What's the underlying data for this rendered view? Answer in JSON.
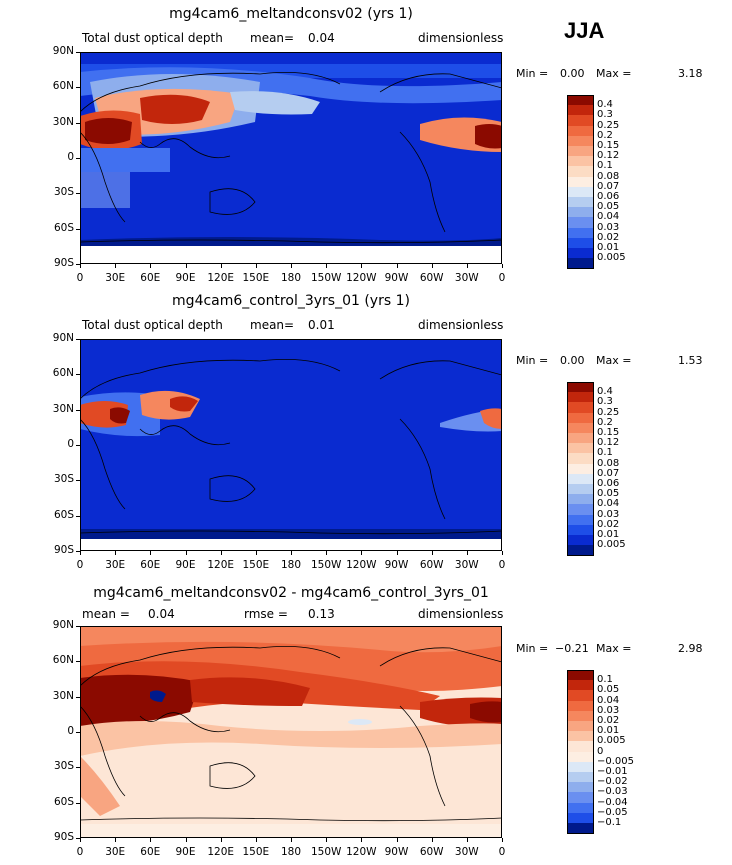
{
  "season": "JJA",
  "lat_ticks": [
    "90N",
    "60N",
    "30N",
    "0",
    "30S",
    "60S",
    "90S"
  ],
  "lon_ticks": [
    "0",
    "30E",
    "60E",
    "90E",
    "120E",
    "150E",
    "180",
    "150W",
    "120W",
    "90W",
    "60W",
    "30W",
    "0"
  ],
  "panels": [
    {
      "title": "mg4cam6_meltandconsv02 (yrs 1)",
      "left_label": "Total dust optical depth",
      "mid_label": "mean=",
      "mid_value": "0.04",
      "right_label": "dimensionless",
      "min_label": "Min =",
      "min_value": "0.00",
      "max_label": "Max =",
      "max_value": "3.18",
      "levels": [
        "0.4",
        "0.3",
        "0.25",
        "0.2",
        "0.15",
        "0.12",
        "0.1",
        "0.08",
        "0.07",
        "0.06",
        "0.05",
        "0.04",
        "0.03",
        "0.02",
        "0.01",
        "0.005"
      ],
      "colors": [
        "#8b0a00",
        "#c2260c",
        "#e14a24",
        "#ef6a40",
        "#f5875e",
        "#f8a581",
        "#fbc3a4",
        "#fcdcc4",
        "#fdeee2",
        "#dce8f6",
        "#b5cdf0",
        "#8eaeed",
        "#6a8ff0",
        "#4170f0",
        "#1e4ee8",
        "#0a2bd0",
        "#001a8c"
      ]
    },
    {
      "title": "mg4cam6_control_3yrs_01 (yrs 1)",
      "left_label": "Total dust optical depth",
      "mid_label": "mean=",
      "mid_value": "0.01",
      "right_label": "dimensionless",
      "min_label": "Min =",
      "min_value": "0.00",
      "max_label": "Max =",
      "max_value": "1.53",
      "levels": [
        "0.4",
        "0.3",
        "0.25",
        "0.2",
        "0.15",
        "0.12",
        "0.1",
        "0.08",
        "0.07",
        "0.06",
        "0.05",
        "0.04",
        "0.03",
        "0.02",
        "0.01",
        "0.005"
      ],
      "colors": [
        "#8b0a00",
        "#c2260c",
        "#e14a24",
        "#ef6a40",
        "#f5875e",
        "#f8a581",
        "#fbc3a4",
        "#fcdcc4",
        "#fdeee2",
        "#dce8f6",
        "#b5cdf0",
        "#8eaeed",
        "#6a8ff0",
        "#4170f0",
        "#1e4ee8",
        "#0a2bd0",
        "#001a8c"
      ]
    },
    {
      "title": "mg4cam6_meltandconsv02 - mg4cam6_control_3yrs_01",
      "left_label": "mean =",
      "left_value": "0.04",
      "mid_label": "rmse =",
      "mid_value": "0.13",
      "right_label": "dimensionless",
      "min_label": "Min =",
      "min_value": "−0.21",
      "max_label": "Max =",
      "max_value": "2.98",
      "levels": [
        "0.1",
        "0.05",
        "0.04",
        "0.03",
        "0.02",
        "0.01",
        "0.005",
        "0",
        "−0.005",
        "−0.01",
        "−0.02",
        "−0.03",
        "−0.04",
        "−0.05",
        "−0.1"
      ],
      "colors": [
        "#8b0a00",
        "#c2260c",
        "#e14a24",
        "#ef6a40",
        "#f5875e",
        "#f8a581",
        "#fbc3a4",
        "#fde6d6",
        "#fdeee2",
        "#dce8f6",
        "#b5cdf0",
        "#8eaeed",
        "#6a8ff0",
        "#4170f0",
        "#1e4ee8",
        "#001a8c"
      ]
    }
  ]
}
